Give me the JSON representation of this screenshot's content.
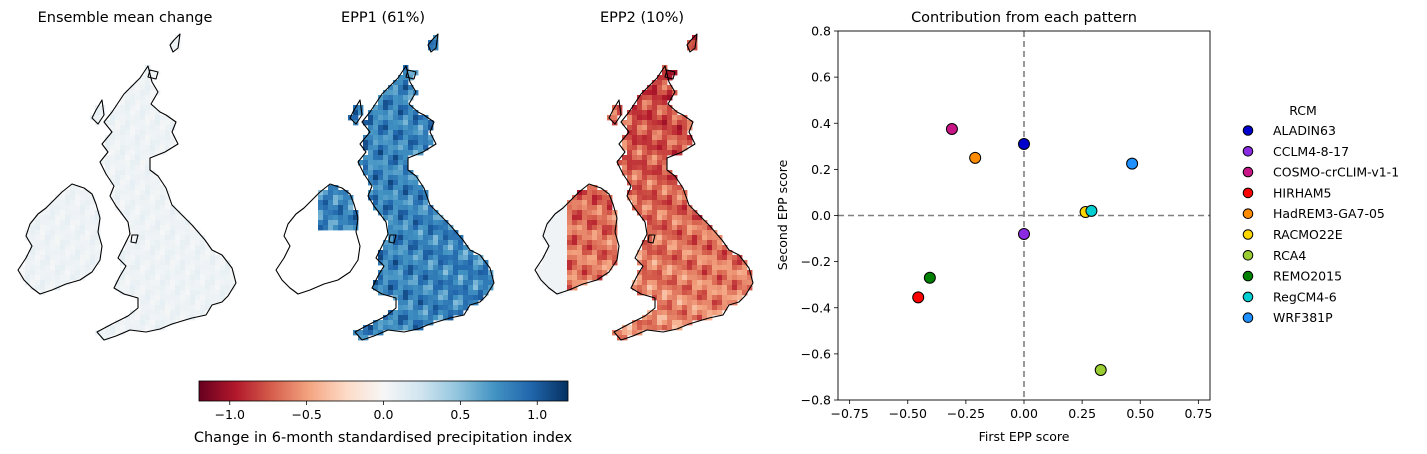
{
  "maps": [
    {
      "title": "Ensemble mean change",
      "style": "mean"
    },
    {
      "title": "EPP1 (61%)",
      "style": "epp1"
    },
    {
      "title": "EPP2 (10%)",
      "style": "epp2"
    }
  ],
  "colorbar": {
    "label": "Change in 6-month standardised precipitation index",
    "range": [
      -1.2,
      1.2
    ],
    "ticks": [
      "−1.0",
      "−0.5",
      "0.0",
      "0.5",
      "1.0"
    ],
    "tick_values": [
      -1.0,
      -0.5,
      0.0,
      0.5,
      1.0
    ],
    "colormap": "RdBu",
    "stops": [
      "#67001f",
      "#b2182b",
      "#d6604d",
      "#f4a582",
      "#fddbc7",
      "#f7f7f7",
      "#d1e5f0",
      "#92c5de",
      "#4393c3",
      "#2166ac",
      "#053061"
    ]
  },
  "chart_data": {
    "type": "scatter",
    "title": "Contribution from each pattern",
    "xlabel": "First EPP score",
    "ylabel": "Second EPP score",
    "xlim": [
      -0.8,
      0.8
    ],
    "ylim": [
      -0.8,
      0.8
    ],
    "xticks": [
      -0.75,
      -0.5,
      -0.25,
      0.0,
      0.25,
      0.5,
      0.75
    ],
    "xtick_labels": [
      "−0.75",
      "−0.50",
      "−0.25",
      "0.00",
      "0.25",
      "0.50",
      "0.75"
    ],
    "yticks": [
      -0.8,
      -0.6,
      -0.4,
      -0.2,
      0.0,
      0.2,
      0.4,
      0.6,
      0.8
    ],
    "ytick_labels": [
      "−0.8",
      "−0.6",
      "−0.4",
      "−0.2",
      "0.0",
      "0.2",
      "0.4",
      "0.6",
      "0.8"
    ],
    "reference_lines": {
      "x": 0.0,
      "y": 0.0,
      "style": "dashed"
    },
    "legend": {
      "title": "RCM",
      "placement": "right, outside"
    },
    "series": [
      {
        "name": "ALADIN63",
        "x": 0.0,
        "y": 0.31,
        "color": "#0000cd"
      },
      {
        "name": "CCLM4-8-17",
        "x": 0.0,
        "y": -0.08,
        "color": "#8a2be2"
      },
      {
        "name": "COSMO-crCLIM-v1-1",
        "x": -0.31,
        "y": 0.375,
        "color": "#c71585"
      },
      {
        "name": "HIRHAM5",
        "x": -0.455,
        "y": -0.355,
        "color": "#ff0000"
      },
      {
        "name": "HadREM3-GA7-05",
        "x": -0.21,
        "y": 0.25,
        "color": "#ff8c00"
      },
      {
        "name": "RACMO22E",
        "x": 0.265,
        "y": 0.015,
        "color": "#ffd700"
      },
      {
        "name": "RCA4",
        "x": 0.33,
        "y": -0.67,
        "color": "#9acd32"
      },
      {
        "name": "REMO2015",
        "x": -0.405,
        "y": -0.27,
        "color": "#008000"
      },
      {
        "name": "RegCM4-6",
        "x": 0.29,
        "y": 0.02,
        "color": "#00ced1"
      },
      {
        "name": "WRF381P",
        "x": 0.465,
        "y": 0.225,
        "color": "#1e90ff"
      }
    ]
  }
}
